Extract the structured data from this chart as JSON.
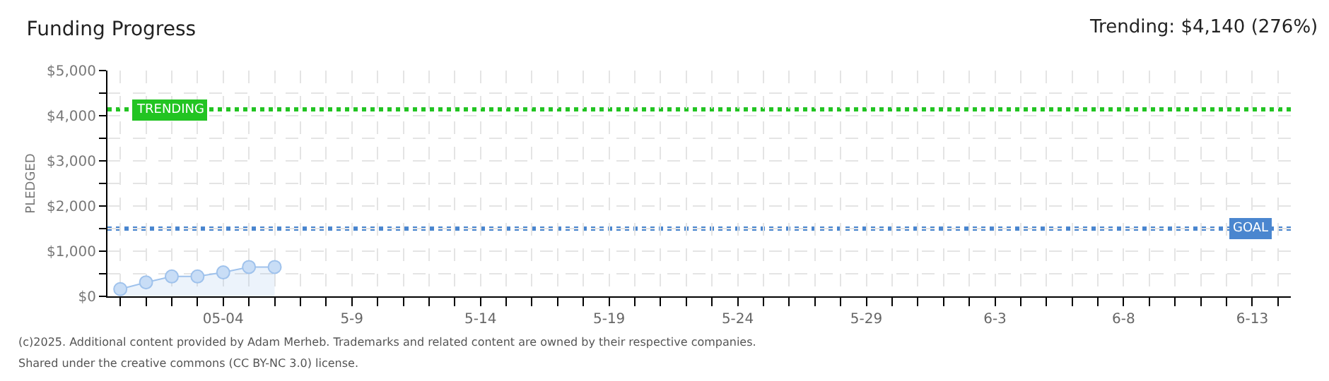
{
  "chart_data": {
    "type": "area",
    "title": "Funding Progress",
    "ylabel": "PLEDGED",
    "annotations": [
      "Trending: $4,140 (276%)",
      "(c)2025. Additional content provided by Adam Merheb. Trademarks and related content are owned by their respective companies.",
      "Shared under the creative commons (CC BY-NC 3.0) license."
    ],
    "x": [
      "2025-04-30",
      "2025-05-01",
      "2025-05-02",
      "2025-05-03",
      "2025-05-04",
      "2025-05-05",
      "2025-05-06"
    ],
    "series": [
      {
        "color": "#9fc2ec",
        "values": [
          160,
          310,
          440,
          440,
          530,
          650,
          650
        ]
      }
    ],
    "xlim": [
      "2025-04-29T12:00",
      "2025-06-14T12:00"
    ],
    "xticks": [
      {
        "value": "2025-04-30",
        "label": null
      },
      {
        "value": "2025-05-01",
        "label": null
      },
      {
        "value": "2025-05-02",
        "label": null
      },
      {
        "value": "2025-05-03",
        "label": null
      },
      {
        "value": "2025-05-04",
        "label": "05-04"
      },
      {
        "value": "2025-05-05",
        "label": null
      },
      {
        "value": "2025-05-06",
        "label": null
      },
      {
        "value": "2025-05-07",
        "label": null
      },
      {
        "value": "2025-05-08",
        "label": null
      },
      {
        "value": "2025-05-09",
        "label": "5-9"
      },
      {
        "value": "2025-05-10",
        "label": null
      },
      {
        "value": "2025-05-11",
        "label": null
      },
      {
        "value": "2025-05-12",
        "label": null
      },
      {
        "value": "2025-05-13",
        "label": null
      },
      {
        "value": "2025-05-14",
        "label": "5-14"
      },
      {
        "value": "2025-05-15",
        "label": null
      },
      {
        "value": "2025-05-16",
        "label": null
      },
      {
        "value": "2025-05-17",
        "label": null
      },
      {
        "value": "2025-05-18",
        "label": null
      },
      {
        "value": "2025-05-19",
        "label": "5-19"
      },
      {
        "value": "2025-05-20",
        "label": null
      },
      {
        "value": "2025-05-21",
        "label": null
      },
      {
        "value": "2025-05-22",
        "label": null
      },
      {
        "value": "2025-05-23",
        "label": null
      },
      {
        "value": "2025-05-24",
        "label": "5-24"
      },
      {
        "value": "2025-05-25",
        "label": null
      },
      {
        "value": "2025-05-26",
        "label": null
      },
      {
        "value": "2025-05-27",
        "label": null
      },
      {
        "value": "2025-05-28",
        "label": null
      },
      {
        "value": "2025-05-29",
        "label": "5-29"
      },
      {
        "value": "2025-05-30",
        "label": null
      },
      {
        "value": "2025-05-31",
        "label": null
      },
      {
        "value": "2025-06-01",
        "label": null
      },
      {
        "value": "2025-06-02",
        "label": null
      },
      {
        "value": "2025-06-03",
        "label": "6-3"
      },
      {
        "value": "2025-06-04",
        "label": null
      },
      {
        "value": "2025-06-05",
        "label": null
      },
      {
        "value": "2025-06-06",
        "label": null
      },
      {
        "value": "2025-06-07",
        "label": null
      },
      {
        "value": "2025-06-08",
        "label": "6-8"
      },
      {
        "value": "2025-06-09",
        "label": null
      },
      {
        "value": "2025-06-10",
        "label": null
      },
      {
        "value": "2025-06-11",
        "label": null
      },
      {
        "value": "2025-06-12",
        "label": null
      },
      {
        "value": "2025-06-13",
        "label": "6-13"
      },
      {
        "value": "2025-06-14",
        "label": null
      }
    ],
    "ylim": [
      0,
      5000
    ],
    "yticks": [
      {
        "value": 0,
        "label": "$0"
      },
      {
        "value": 500,
        "label": null
      },
      {
        "value": 1000,
        "label": "$1,000"
      },
      {
        "value": 1500,
        "label": null
      },
      {
        "value": 2000,
        "label": "$2,000"
      },
      {
        "value": 2500,
        "label": null
      },
      {
        "value": 3000,
        "label": "$3,000"
      },
      {
        "value": 3500,
        "label": null
      },
      {
        "value": 4000,
        "label": "$4,000"
      },
      {
        "value": 4500,
        "label": null
      },
      {
        "value": 5000,
        "label": "$5,000"
      }
    ],
    "ref_lines": [
      {
        "axis": "y",
        "value": 4140,
        "label": "TRENDING",
        "color": "#22c422",
        "line_style": "dotted"
      },
      {
        "axis": "y",
        "value": 1500,
        "label": "GOAL",
        "color": "#4a86cf",
        "line_style": "dotted"
      }
    ],
    "grid": true,
    "marker": "circle",
    "line_style": "solid"
  }
}
